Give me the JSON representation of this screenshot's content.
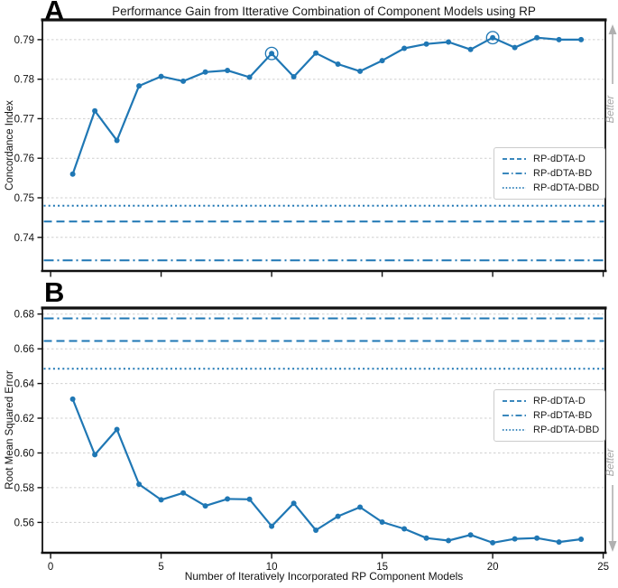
{
  "title": "Performance Gain from Itterative Combination of Component Models using RP",
  "xlabel": "Number of Iteratively Incorporated RP Component Models",
  "better_label": "Better",
  "accent_color": "#1f77b4",
  "grid_color": "#cfcfcf",
  "better_color": "#b0b0b0",
  "chart_data": [
    {
      "type": "line",
      "panel_label": "A",
      "ylabel": "Concordance Index",
      "x": [
        1,
        2,
        3,
        4,
        5,
        6,
        7,
        8,
        9,
        10,
        11,
        12,
        13,
        14,
        15,
        16,
        17,
        18,
        19,
        20,
        21,
        22,
        23,
        24
      ],
      "values": [
        0.756,
        0.772,
        0.7645,
        0.7783,
        0.7807,
        0.7795,
        0.7818,
        0.7822,
        0.7805,
        0.7865,
        0.7806,
        0.7866,
        0.7838,
        0.782,
        0.7847,
        0.7878,
        0.7889,
        0.7894,
        0.7875,
        0.7905,
        0.788,
        0.7905,
        0.79,
        0.79
      ],
      "circled_x": [
        10,
        20
      ],
      "hlines": [
        {
          "label": "RP-dDTA-D",
          "style": "dashed",
          "value": 0.744
        },
        {
          "label": "RP-dDTA-BD",
          "style": "dashdot",
          "value": 0.7342
        },
        {
          "label": "RP-dDTA-DBD",
          "style": "dotted",
          "value": 0.748
        }
      ],
      "yticks": [
        0.74,
        0.75,
        0.76,
        0.77,
        0.78,
        0.79
      ],
      "ytick_labels": [
        "0.74",
        "0.75",
        "0.76",
        "0.77",
        "0.78",
        "0.79"
      ],
      "xticks": [
        0,
        5,
        10,
        15,
        20,
        25
      ],
      "xtick_labels": [
        "0",
        "5",
        "10",
        "15",
        "20",
        "25"
      ],
      "ylim": [
        0.7315,
        0.795
      ],
      "xlim": [
        -0.37,
        25.1
      ],
      "grid": true,
      "legend_position": "right-middle",
      "better_direction": "up"
    },
    {
      "type": "line",
      "panel_label": "B",
      "ylabel": "Root Mean Squared Error",
      "x": [
        1,
        2,
        3,
        4,
        5,
        6,
        7,
        8,
        9,
        10,
        11,
        12,
        13,
        14,
        15,
        16,
        17,
        18,
        19,
        20,
        21,
        22,
        23,
        24
      ],
      "values": [
        0.631,
        0.599,
        0.6135,
        0.582,
        0.573,
        0.577,
        0.5695,
        0.5735,
        0.5733,
        0.5578,
        0.571,
        0.5555,
        0.5635,
        0.5688,
        0.5602,
        0.5563,
        0.551,
        0.5495,
        0.5528,
        0.5483,
        0.5505,
        0.551,
        0.5487,
        0.5503
      ],
      "circled_x": [],
      "hlines": [
        {
          "label": "RP-dDTA-D",
          "style": "dashed",
          "value": 0.6645
        },
        {
          "label": "RP-dDTA-BD",
          "style": "dashdot",
          "value": 0.6775
        },
        {
          "label": "RP-dDTA-DBD",
          "style": "dotted",
          "value": 0.6485
        }
      ],
      "yticks": [
        0.56,
        0.58,
        0.6,
        0.62,
        0.64,
        0.66,
        0.68
      ],
      "ytick_labels": [
        "0.56",
        "0.58",
        "0.60",
        "0.62",
        "0.64",
        "0.66",
        "0.68"
      ],
      "xticks": [
        0,
        5,
        10,
        15,
        20,
        25
      ],
      "xtick_labels": [
        "0",
        "5",
        "10",
        "15",
        "20",
        "25"
      ],
      "ylim": [
        0.5425,
        0.6835
      ],
      "xlim": [
        -0.37,
        25.1
      ],
      "grid": true,
      "legend_position": "right-upper",
      "better_direction": "down"
    }
  ]
}
